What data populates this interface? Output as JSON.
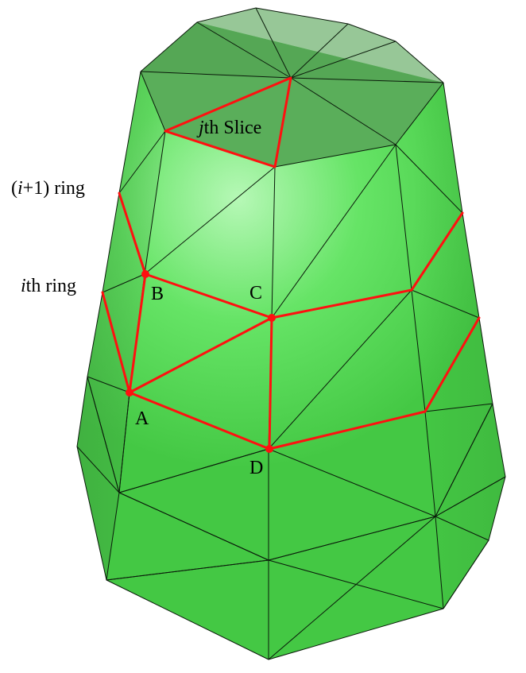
{
  "labels": {
    "slice_prefix": "j",
    "slice_suffix": "th Slice",
    "ring_next_open": "(",
    "ring_next_var": "i",
    "ring_next_rest": "+1) ring",
    "ring_i_var": "i",
    "ring_i_rest": "th ring",
    "point_a": "A",
    "point_b": "B",
    "point_c": "C",
    "point_d": "D"
  },
  "colors": {
    "surface": "#52e052",
    "surface_light": "#b6f8b6",
    "surface_dark": "#3fa83f",
    "top_cap": "#5aae5a",
    "edge": "#0a1a0a",
    "highlight": "#ff1010"
  }
}
